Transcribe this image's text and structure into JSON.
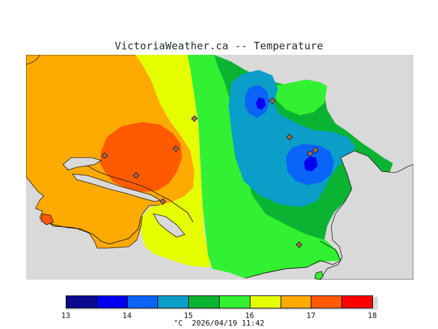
{
  "header": {
    "title": "VictoriaWeather.ca -- Temperature"
  },
  "legend": {
    "colors": [
      "#0a0a8c",
      "#0000f0",
      "#0a64f8",
      "#0a9ec8",
      "#0ab432",
      "#32f032",
      "#e6ff00",
      "#ffaa00",
      "#ff5a00",
      "#ff0000"
    ],
    "ticks": [
      {
        "label": "13",
        "value": 13
      },
      {
        "label": "14",
        "value": 14
      },
      {
        "label": "15",
        "value": 15
      },
      {
        "label": "16",
        "value": 16
      },
      {
        "label": "17",
        "value": 17
      },
      {
        "label": "18",
        "value": 18
      }
    ],
    "range": [
      13,
      18
    ],
    "unit": "°C",
    "timestamp": "2026/04/19 11:42"
  },
  "map": {
    "land_colors": {
      "background": "#d9d9d9",
      "outline": "#111111"
    },
    "stations_count_note": ""
  }
}
